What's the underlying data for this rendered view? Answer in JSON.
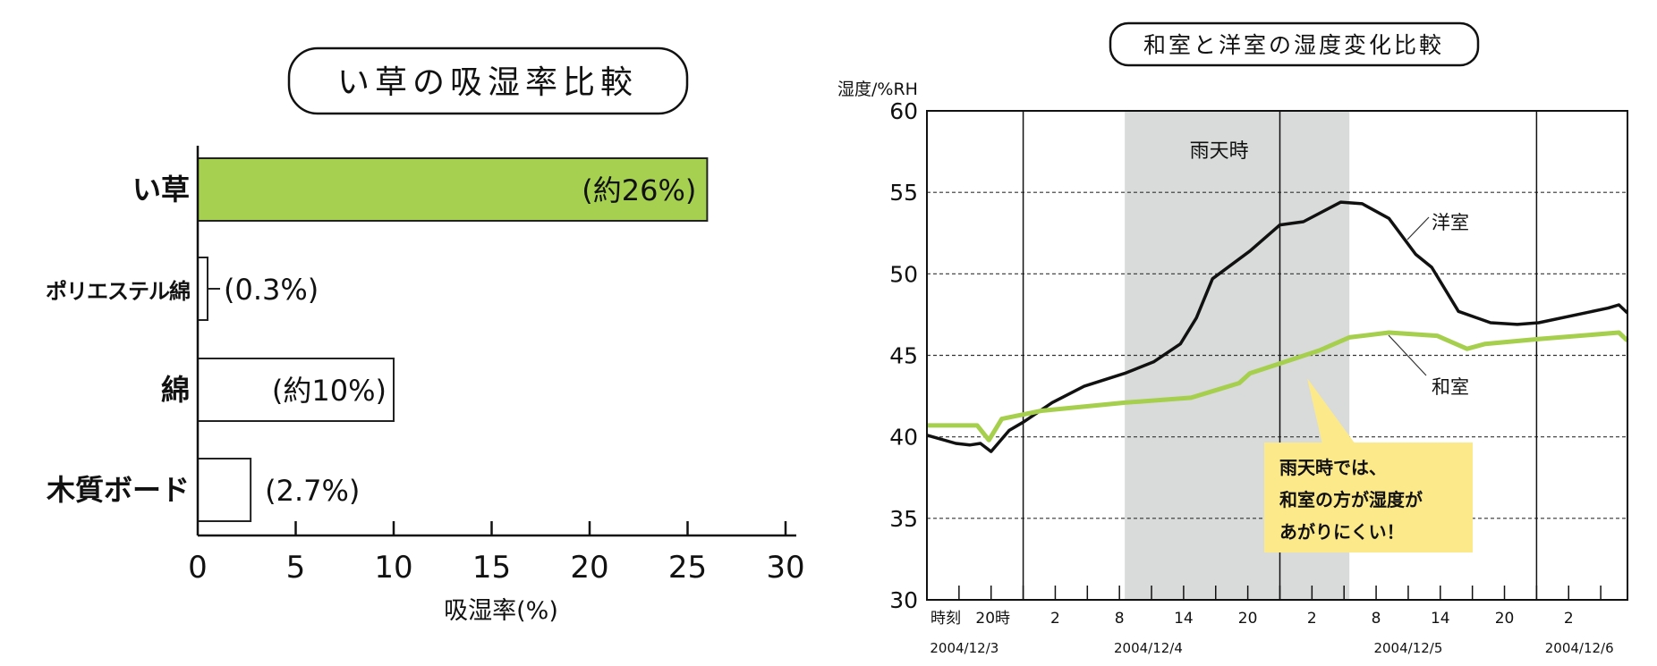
{
  "chart_data": [
    {
      "type": "bar",
      "orientation": "horizontal",
      "title": "い草の吸湿率比較",
      "xlabel": "吸湿率(%)",
      "ylabel": "",
      "xlim": [
        0,
        30
      ],
      "xticks": [
        "0",
        "5",
        "10",
        "15",
        "20",
        "25",
        "30"
      ],
      "categories": [
        "い草",
        "ポリエステル綿",
        "綿",
        "木質ボード"
      ],
      "values": [
        26,
        0.3,
        10,
        2.7
      ],
      "data_labels": [
        "(約26%)",
        "(0.3%)",
        "(約10%)",
        "(2.7%)"
      ],
      "colors": [
        "#a6d04f",
        "#ffffff",
        "#ffffff",
        "#ffffff"
      ]
    },
    {
      "type": "line",
      "title": "和室と洋室の湿度変化比較",
      "ylabel": "湿度/%RH",
      "ylim": [
        30,
        60
      ],
      "yticks": [
        "30",
        "35",
        "40",
        "45",
        "50",
        "55",
        "60"
      ],
      "xlabel_prefix": "時刻",
      "x_unit": "hours from 2004/12/3 0:00",
      "xlim": [
        14,
        79.5
      ],
      "x_tick_labels": [
        {
          "x": 20,
          "label": "20時"
        },
        {
          "x": 26,
          "label": "2"
        },
        {
          "x": 32,
          "label": "8"
        },
        {
          "x": 38,
          "label": "14"
        },
        {
          "x": 44,
          "label": "20"
        },
        {
          "x": 50,
          "label": "2"
        },
        {
          "x": 56,
          "label": "8"
        },
        {
          "x": 62,
          "label": "14"
        },
        {
          "x": 68,
          "label": "20"
        },
        {
          "x": 74,
          "label": "2"
        }
      ],
      "date_labels": [
        {
          "x": 17.5,
          "label": "2004/12/3"
        },
        {
          "x": 34.7,
          "label": "2004/12/4"
        },
        {
          "x": 59,
          "label": "2004/12/5"
        },
        {
          "x": 75,
          "label": "2004/12/6"
        }
      ],
      "day_lines": [
        23,
        47,
        71
      ],
      "shaded_region": {
        "from": 32.5,
        "to": 53.5,
        "label": "雨天時"
      },
      "series": [
        {
          "name": "洋室",
          "color": "#111111",
          "x": [
            14,
            16.7,
            18,
            19,
            20,
            21.7,
            23,
            25.7,
            28.7,
            32.5,
            35.2,
            37.7,
            39.2,
            40.7,
            44.2,
            47,
            49.2,
            52.7,
            54.7,
            57.2,
            59.7,
            61.2,
            63.7,
            66.7,
            69.2,
            71.2,
            77.7,
            78.7,
            79.5
          ],
          "y": [
            40.1,
            39.6,
            39.5,
            39.6,
            39.1,
            40.4,
            40.9,
            42.1,
            43.1,
            43.9,
            44.6,
            45.7,
            47.3,
            49.7,
            51.4,
            53.0,
            53.2,
            54.4,
            54.3,
            53.4,
            51.2,
            50.4,
            47.7,
            47.0,
            46.9,
            47.0,
            47.9,
            48.1,
            47.6
          ]
        },
        {
          "name": "和室",
          "color": "#a5cf4c",
          "x": [
            14,
            18.7,
            19.8,
            21,
            24.7,
            32.5,
            38.7,
            41.2,
            43.2,
            44.2,
            47,
            50.7,
            53.5,
            57.2,
            61.7,
            64.5,
            66.2,
            71.2,
            78.7,
            79.5
          ],
          "y": [
            40.7,
            40.7,
            39.8,
            41.1,
            41.6,
            42.1,
            42.4,
            42.9,
            43.3,
            43.9,
            44.5,
            45.3,
            46.1,
            46.4,
            46.2,
            45.4,
            45.7,
            46.0,
            46.4,
            45.9
          ]
        }
      ],
      "annotation": {
        "lines": [
          "雨天時では、",
          "和室の方が湿度が",
          "あがりにくい！"
        ],
        "color": "#fce98a"
      }
    }
  ]
}
